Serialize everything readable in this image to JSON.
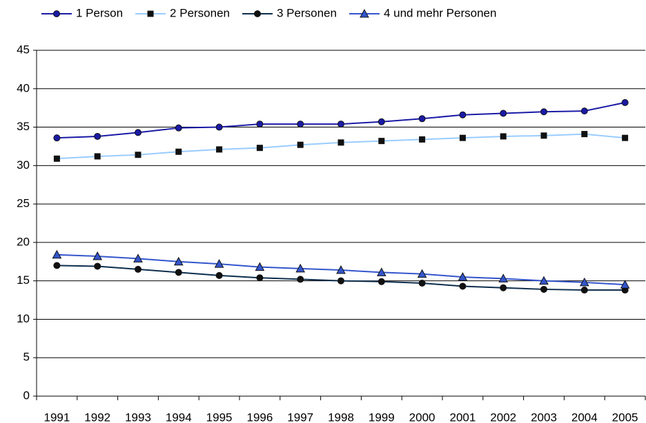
{
  "chart_data": {
    "type": "line",
    "categories": [
      "1991",
      "1992",
      "1993",
      "1994",
      "1995",
      "1996",
      "1997",
      "1998",
      "1999",
      "2000",
      "2001",
      "2002",
      "2003",
      "2004",
      "2005"
    ],
    "series": [
      {
        "name": "1 Person",
        "color": "#1a1aa6",
        "marker": "circle",
        "marker_color": "#1a1aa6",
        "values": [
          33.6,
          33.8,
          34.3,
          34.9,
          35.0,
          35.4,
          35.4,
          35.4,
          35.7,
          36.1,
          36.6,
          36.8,
          37.0,
          37.1,
          38.2
        ]
      },
      {
        "name": "2 Personen",
        "color": "#99ccff",
        "marker": "square",
        "marker_color": "#111111",
        "values": [
          30.9,
          31.2,
          31.4,
          31.8,
          32.1,
          32.3,
          32.7,
          33.0,
          33.2,
          33.4,
          33.6,
          33.8,
          33.9,
          34.1,
          33.6
        ]
      },
      {
        "name": "3 Personen",
        "color": "#0d2d4d",
        "marker": "circle",
        "marker_color": "#111111",
        "values": [
          17.0,
          16.9,
          16.5,
          16.1,
          15.7,
          15.4,
          15.2,
          15.0,
          14.9,
          14.7,
          14.3,
          14.1,
          13.9,
          13.8,
          13.8
        ]
      },
      {
        "name": "4 und mehr Personen",
        "color": "#3355cc",
        "marker": "triangle",
        "marker_color": "#3355cc",
        "values": [
          18.4,
          18.2,
          17.9,
          17.5,
          17.2,
          16.8,
          16.6,
          16.4,
          16.1,
          15.9,
          15.5,
          15.3,
          15.0,
          14.8,
          14.5
        ]
      }
    ],
    "ylim": [
      0,
      45
    ],
    "yticks": [
      0,
      5,
      10,
      15,
      20,
      25,
      30,
      35,
      40,
      45
    ],
    "grid": true,
    "legend": "top"
  }
}
